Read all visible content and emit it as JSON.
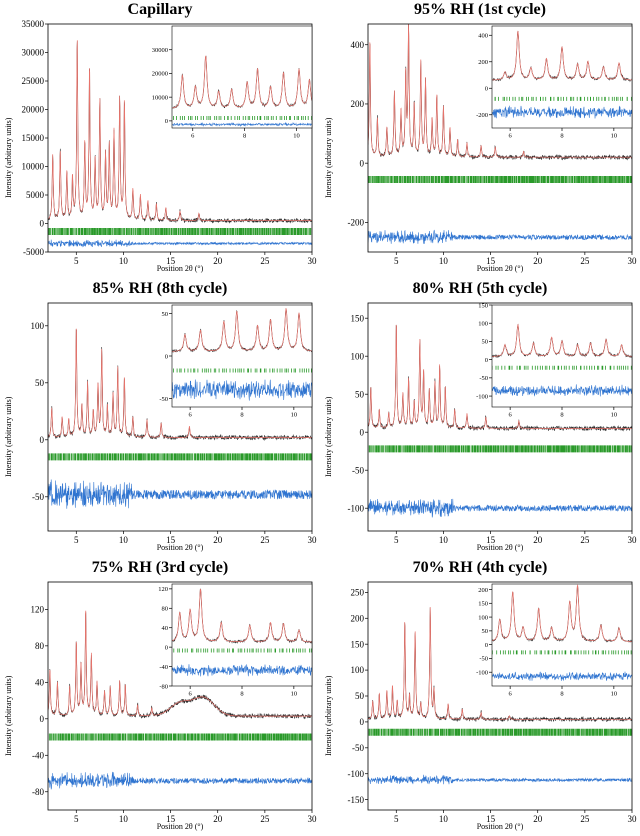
{
  "chart_data": [
    {
      "type": "line",
      "title": "Capillary",
      "xlabel": "Position 2θ (°)",
      "ylabel": "Intensity (arbitrary units)",
      "xlim": [
        2,
        30
      ],
      "ylim": [
        -5000,
        35000
      ],
      "xticks": [
        5,
        10,
        15,
        20,
        25,
        30
      ],
      "yticks": [
        -5000,
        0,
        5000,
        10000,
        15000,
        20000,
        25000,
        30000,
        35000
      ],
      "peaks": [
        [
          2.5,
          12000
        ],
        [
          3.3,
          12500
        ],
        [
          4.0,
          9000
        ],
        [
          4.6,
          8000
        ],
        [
          5.1,
          32500
        ],
        [
          5.9,
          14000
        ],
        [
          6.4,
          27500
        ],
        [
          7.0,
          11000
        ],
        [
          7.5,
          21500
        ],
        [
          8.1,
          12000
        ],
        [
          8.5,
          13500
        ],
        [
          9.0,
          16000
        ],
        [
          9.6,
          22000
        ],
        [
          10.1,
          21500
        ],
        [
          11.0,
          6000
        ],
        [
          11.8,
          5000
        ],
        [
          12.6,
          4000
        ],
        [
          13.5,
          3500
        ],
        [
          14.5,
          2800
        ],
        [
          16.0,
          2200
        ],
        [
          18.0,
          1800
        ]
      ],
      "baseline": 500,
      "tick_y": -1400,
      "diff_y": -3500,
      "diff_noise": 200,
      "inset": {
        "xlim": [
          5.2,
          10.6
        ],
        "ylim": [
          -3000,
          40000
        ],
        "xticks": [
          6,
          8,
          10
        ],
        "yticks": [
          0,
          10000,
          20000,
          30000
        ],
        "peaks": [
          [
            5.6,
            19000
          ],
          [
            6.1,
            14000
          ],
          [
            6.5,
            27000
          ],
          [
            7.0,
            12000
          ],
          [
            7.5,
            13000
          ],
          [
            8.1,
            16000
          ],
          [
            8.5,
            21500
          ],
          [
            9.0,
            14000
          ],
          [
            9.5,
            20000
          ],
          [
            10.1,
            21500
          ],
          [
            10.5,
            17000
          ]
        ],
        "baseline": 5000,
        "tick_y": 1200,
        "diff_y": -1500,
        "diff_noise": 200
      }
    },
    {
      "type": "line",
      "title": "95% RH (1st cycle)",
      "xlabel": "Position 2θ (°)",
      "ylabel": "Intensity (arbitrary units)",
      "xlim": [
        2,
        30
      ],
      "ylim": [
        -300,
        470
      ],
      "xticks": [
        5,
        10,
        15,
        20,
        25,
        30
      ],
      "yticks": [
        -200,
        0,
        200,
        400
      ],
      "peaks": [
        [
          2.2,
          420
        ],
        [
          3.0,
          150
        ],
        [
          4.0,
          120
        ],
        [
          4.8,
          240
        ],
        [
          5.5,
          180
        ],
        [
          6.0,
          300
        ],
        [
          6.3,
          460
        ],
        [
          6.9,
          200
        ],
        [
          7.6,
          340
        ],
        [
          8.1,
          280
        ],
        [
          8.8,
          150
        ],
        [
          9.3,
          230
        ],
        [
          10.0,
          190
        ],
        [
          10.7,
          120
        ],
        [
          11.5,
          80
        ],
        [
          12.5,
          70
        ],
        [
          14.0,
          60
        ],
        [
          15.5,
          55
        ],
        [
          18.5,
          40
        ]
      ],
      "baseline": 20,
      "tick_y": -55,
      "diff_y": -250,
      "diff_noise": 8,
      "inset": {
        "xlim": [
          5.3,
          10.7
        ],
        "ylim": [
          -300,
          470
        ],
        "xticks": [
          6,
          8,
          10
        ],
        "yticks": [
          -200,
          0,
          200,
          400
        ],
        "peaks": [
          [
            5.8,
            120
          ],
          [
            6.3,
            430
          ],
          [
            6.8,
            150
          ],
          [
            7.4,
            220
          ],
          [
            8.0,
            310
          ],
          [
            8.6,
            180
          ],
          [
            9.0,
            200
          ],
          [
            9.6,
            160
          ],
          [
            10.2,
            190
          ]
        ],
        "baseline": 60,
        "tick_y": -80,
        "diff_y": -180,
        "diff_noise": 15
      }
    },
    {
      "type": "line",
      "title": "85% RH (8th cycle)",
      "xlabel": "Position 2θ (°)",
      "ylabel": "Intensity (arbitrary units)",
      "xlim": [
        2,
        30
      ],
      "ylim": [
        -80,
        120
      ],
      "xticks": [
        5,
        10,
        15,
        20,
        25,
        30
      ],
      "yticks": [
        -50,
        0,
        50,
        100
      ],
      "peaks": [
        [
          2.4,
          28
        ],
        [
          3.5,
          20
        ],
        [
          4.2,
          18
        ],
        [
          5.0,
          100
        ],
        [
          5.6,
          30
        ],
        [
          6.2,
          50
        ],
        [
          6.8,
          25
        ],
        [
          7.3,
          48
        ],
        [
          7.7,
          78
        ],
        [
          8.3,
          30
        ],
        [
          8.9,
          40
        ],
        [
          9.4,
          63
        ],
        [
          10.1,
          55
        ],
        [
          11.0,
          20
        ],
        [
          12.5,
          18
        ],
        [
          14.0,
          15
        ],
        [
          17.0,
          12
        ]
      ],
      "baseline": 2,
      "tick_y": -15,
      "diff_y": -48,
      "diff_noise": 4,
      "inset": {
        "xlim": [
          5.3,
          10.7
        ],
        "ylim": [
          -60,
          60
        ],
        "xticks": [
          6,
          8,
          10
        ],
        "yticks": [
          -50,
          0,
          50
        ],
        "peaks": [
          [
            5.8,
            25
          ],
          [
            6.4,
            30
          ],
          [
            7.3,
            40
          ],
          [
            7.8,
            52
          ],
          [
            8.6,
            35
          ],
          [
            9.1,
            42
          ],
          [
            9.7,
            55
          ],
          [
            10.2,
            50
          ]
        ],
        "baseline": 5,
        "tick_y": -17,
        "diff_y": -40,
        "diff_noise": 4
      }
    },
    {
      "type": "line",
      "title": "80% RH (5th cycle)",
      "xlabel": "Position 2θ (°)",
      "ylabel": "Intensity (arbitrary units)",
      "xlim": [
        2,
        30
      ],
      "ylim": [
        -130,
        170
      ],
      "xticks": [
        5,
        10,
        15,
        20,
        25,
        30
      ],
      "yticks": [
        -100,
        -50,
        0,
        50,
        100,
        150
      ],
      "peaks": [
        [
          2.3,
          60
        ],
        [
          3.2,
          30
        ],
        [
          4.2,
          25
        ],
        [
          5.0,
          145
        ],
        [
          5.7,
          50
        ],
        [
          6.3,
          70
        ],
        [
          6.9,
          40
        ],
        [
          7.5,
          120
        ],
        [
          7.9,
          80
        ],
        [
          8.5,
          55
        ],
        [
          9.1,
          65
        ],
        [
          9.6,
          88
        ],
        [
          10.2,
          60
        ],
        [
          11.2,
          30
        ],
        [
          12.5,
          25
        ],
        [
          14.5,
          20
        ],
        [
          18.0,
          15
        ]
      ],
      "baseline": 5,
      "tick_y": -22,
      "diff_y": -100,
      "diff_noise": 4,
      "inset": {
        "xlim": [
          5.3,
          10.7
        ],
        "ylim": [
          -130,
          150
        ],
        "xticks": [
          6,
          8,
          10
        ],
        "yticks": [
          -100,
          -50,
          0,
          50,
          100,
          150
        ],
        "peaks": [
          [
            5.8,
            40
          ],
          [
            6.3,
            95
          ],
          [
            6.9,
            45
          ],
          [
            7.6,
            60
          ],
          [
            8.0,
            50
          ],
          [
            8.6,
            40
          ],
          [
            9.1,
            45
          ],
          [
            9.7,
            55
          ],
          [
            10.3,
            40
          ]
        ],
        "baseline": 8,
        "tick_y": -22,
        "diff_y": -85,
        "diff_noise": 5
      }
    },
    {
      "type": "line",
      "title": "75% RH (3rd cycle)",
      "xlabel": "Position 2θ (°)",
      "ylabel": "Intensity (arbitrary units)",
      "xlim": [
        2,
        30
      ],
      "ylim": [
        -100,
        150
      ],
      "xticks": [
        5,
        10,
        15,
        20,
        25,
        30
      ],
      "yticks": [
        -80,
        -40,
        0,
        40,
        80,
        120
      ],
      "peaks": [
        [
          2.2,
          55
        ],
        [
          3.0,
          40
        ],
        [
          4.3,
          35
        ],
        [
          5.0,
          85
        ],
        [
          5.5,
          60
        ],
        [
          6.0,
          120
        ],
        [
          6.6,
          70
        ],
        [
          7.2,
          40
        ],
        [
          8.0,
          30
        ],
        [
          8.6,
          35
        ],
        [
          9.6,
          42
        ],
        [
          10.2,
          38
        ],
        [
          11.5,
          15
        ],
        [
          13.0,
          12
        ]
      ],
      "broad": [
        [
          16.0,
          14,
          1.5
        ],
        [
          18.5,
          20,
          1.6
        ]
      ],
      "baseline": 3,
      "tick_y": -20,
      "diff_y": -68,
      "diff_noise": 3,
      "inset": {
        "xlim": [
          5.3,
          10.7
        ],
        "ylim": [
          -80,
          130
        ],
        "xticks": [
          6,
          8,
          10
        ],
        "yticks": [
          -80,
          -40,
          0,
          40,
          80,
          120
        ],
        "peaks": [
          [
            5.6,
            70
          ],
          [
            6.0,
            75
          ],
          [
            6.4,
            118
          ],
          [
            7.2,
            50
          ],
          [
            8.3,
            45
          ],
          [
            9.1,
            50
          ],
          [
            9.6,
            48
          ],
          [
            10.2,
            35
          ]
        ],
        "baseline": 10,
        "tick_y": -7,
        "diff_y": -48,
        "diff_noise": 4
      }
    },
    {
      "type": "line",
      "title": "70% RH (4th cycle)",
      "xlabel": "Position 2θ (°)",
      "ylabel": "Intensity (arbitrary units)",
      "xlim": [
        2,
        30
      ],
      "ylim": [
        -170,
        270
      ],
      "xticks": [
        5,
        10,
        15,
        20,
        25,
        30
      ],
      "yticks": [
        -150,
        -100,
        -50,
        0,
        50,
        100,
        150,
        200,
        250
      ],
      "peaks": [
        [
          2.5,
          40
        ],
        [
          3.2,
          55
        ],
        [
          4.0,
          60
        ],
        [
          4.6,
          70
        ],
        [
          5.1,
          40
        ],
        [
          5.9,
          195
        ],
        [
          6.4,
          50
        ],
        [
          7.0,
          175
        ],
        [
          7.6,
          35
        ],
        [
          8.6,
          220
        ],
        [
          9.0,
          60
        ],
        [
          10.5,
          35
        ],
        [
          12.0,
          25
        ],
        [
          14.0,
          18
        ],
        [
          17.0,
          12
        ]
      ],
      "baseline": 5,
      "tick_y": -20,
      "diff_y": -112,
      "diff_noise": 3,
      "inset": {
        "xlim": [
          5.3,
          10.7
        ],
        "ylim": [
          -150,
          220
        ],
        "xticks": [
          6,
          8,
          10
        ],
        "yticks": [
          -100,
          -50,
          0,
          50,
          100,
          150,
          200
        ],
        "peaks": [
          [
            5.6,
            90
          ],
          [
            6.1,
            190
          ],
          [
            6.5,
            60
          ],
          [
            7.1,
            130
          ],
          [
            7.6,
            60
          ],
          [
            8.3,
            150
          ],
          [
            8.6,
            210
          ],
          [
            9.5,
            70
          ],
          [
            10.2,
            60
          ]
        ],
        "baseline": 10,
        "tick_y": -28,
        "diff_y": -115,
        "diff_noise": 5
      }
    }
  ]
}
